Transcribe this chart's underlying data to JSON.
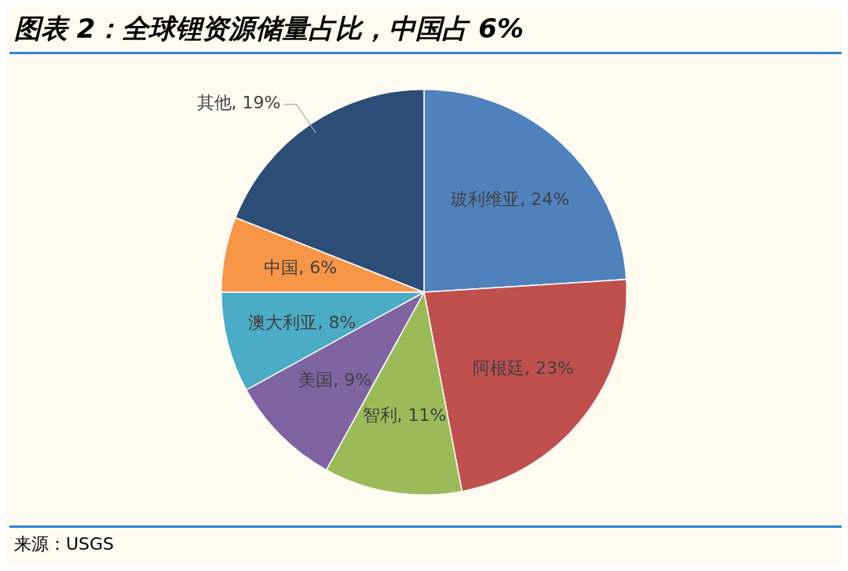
{
  "chart_data": {
    "type": "pie",
    "title": "图表 2：全球锂资源储量占比，中国占 6%",
    "categories": [
      "玻利维亚",
      "阿根廷",
      "智利",
      "美国",
      "澳大利亚",
      "中国",
      "其他"
    ],
    "values": [
      24,
      23,
      11,
      9,
      8,
      6,
      19
    ],
    "colors": [
      "#4f81bd",
      "#c0504d",
      "#9bbb59",
      "#8064a2",
      "#4bacc6",
      "#f79646",
      "#2c4d75"
    ],
    "value_labels": [
      "24%",
      "23%",
      "11%",
      "9%",
      "8%",
      "6%",
      "19%"
    ],
    "legend": false,
    "annotations": [
      "来源：USGS"
    ]
  }
}
